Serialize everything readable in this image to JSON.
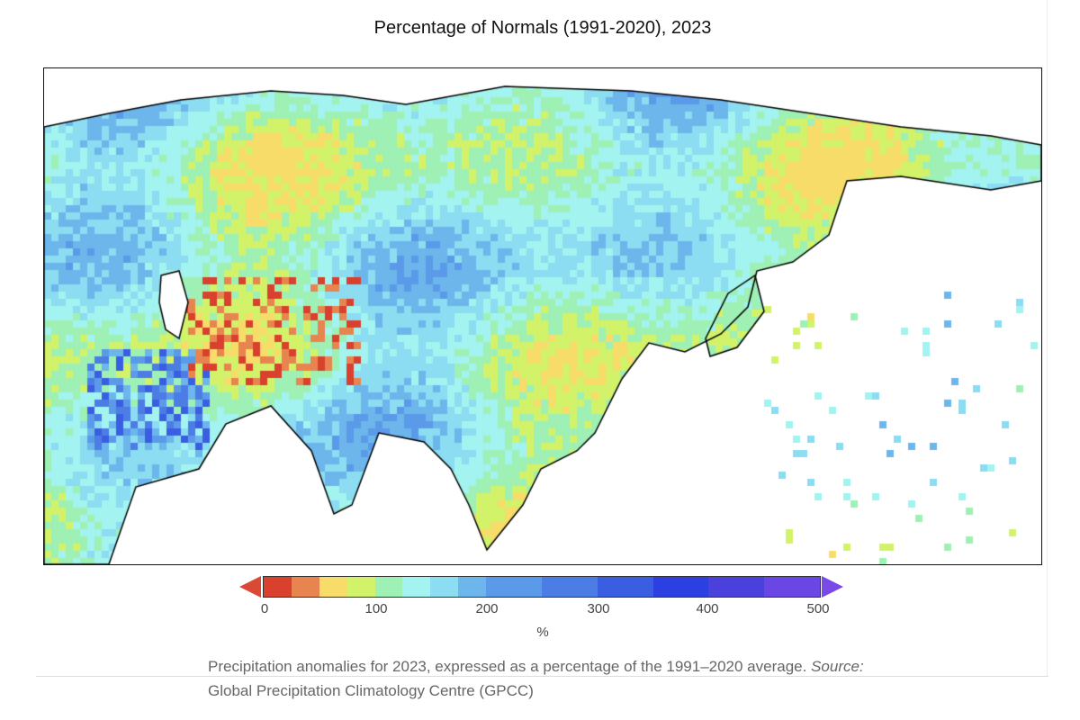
{
  "title": "Percentage of Normals (1991-2020), 2023",
  "colorbar": {
    "unit": "%",
    "ticks": [
      "0",
      "100",
      "200",
      "300",
      "400",
      "500"
    ],
    "bins": [
      {
        "from": 0,
        "to": 25,
        "color": "#d9402e"
      },
      {
        "from": 25,
        "to": 50,
        "color": "#e8844f"
      },
      {
        "from": 50,
        "to": 75,
        "color": "#f7dc6a"
      },
      {
        "from": 75,
        "to": 100,
        "color": "#d2f26a"
      },
      {
        "from": 100,
        "to": 125,
        "color": "#9ef0b4"
      },
      {
        "from": 125,
        "to": 150,
        "color": "#a3f3f0"
      },
      {
        "from": 150,
        "to": 175,
        "color": "#8cdcf2"
      },
      {
        "from": 175,
        "to": 200,
        "color": "#6cb6ec"
      },
      {
        "from": 200,
        "to": 250,
        "color": "#5b9ae8"
      },
      {
        "from": 250,
        "to": 300,
        "color": "#4c7de4"
      },
      {
        "from": 300,
        "to": 350,
        "color": "#3a5ee2"
      },
      {
        "from": 350,
        "to": 400,
        "color": "#2c3fe0"
      },
      {
        "from": 400,
        "to": 450,
        "color": "#4a40dc"
      },
      {
        "from": 450,
        "to": 500,
        "color": "#6a46e4"
      }
    ],
    "under_color": "#d9402e",
    "over_color": "#7a4ae6"
  },
  "caption": {
    "text1": "Precipitation anomalies for 2023, expressed as a percentage of the 1991–2020 average. ",
    "source_label": "Source:",
    "text2": " Global Precipitation Climatology Centre (GPCC)"
  }
}
